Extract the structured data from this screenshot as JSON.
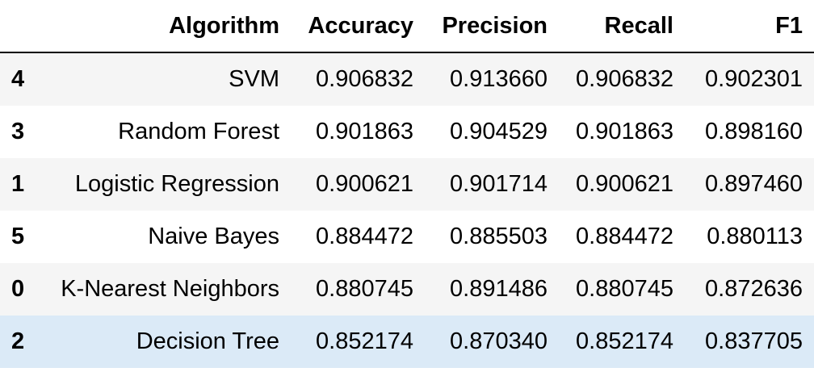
{
  "table": {
    "columns": [
      "Algorithm",
      "Accuracy",
      "Precision",
      "Recall",
      "F1"
    ],
    "rows": [
      {
        "index": "4",
        "algorithm": "SVM",
        "accuracy": "0.906832",
        "precision": "0.913660",
        "recall": "0.906832",
        "f1": "0.902301"
      },
      {
        "index": "3",
        "algorithm": "Random Forest",
        "accuracy": "0.901863",
        "precision": "0.904529",
        "recall": "0.901863",
        "f1": "0.898160"
      },
      {
        "index": "1",
        "algorithm": "Logistic Regression",
        "accuracy": "0.900621",
        "precision": "0.901714",
        "recall": "0.900621",
        "f1": "0.897460"
      },
      {
        "index": "5",
        "algorithm": "Naive Bayes",
        "accuracy": "0.884472",
        "precision": "0.885503",
        "recall": "0.884472",
        "f1": "0.880113"
      },
      {
        "index": "0",
        "algorithm": "K-Nearest Neighbors",
        "accuracy": "0.880745",
        "precision": "0.891486",
        "recall": "0.880745",
        "f1": "0.872636"
      },
      {
        "index": "2",
        "algorithm": "Decision Tree",
        "accuracy": "0.852174",
        "precision": "0.870340",
        "recall": "0.852174",
        "f1": "0.837705"
      }
    ],
    "highlighted_row": 5,
    "colors": {
      "row_stripe": "#f5f5f5",
      "row_plain": "#ffffff",
      "row_hover": "#dbeaf7",
      "header_rule": "#000000"
    }
  }
}
